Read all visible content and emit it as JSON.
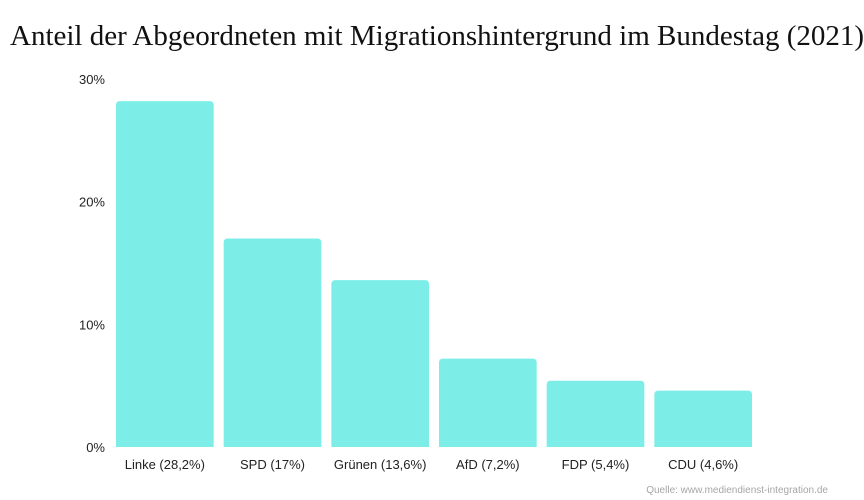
{
  "chart_data": {
    "type": "bar",
    "title": "Anteil der Abgeordneten mit Migrationshintergrund im Bundestag (2021)",
    "categories": [
      "Linke (28,2%)",
      "SPD (17%)",
      "Grünen (13,6%)",
      "AfD (7,2%)",
      "FDP (5,4%)",
      "CDU (4,6%)"
    ],
    "values": [
      28.2,
      17,
      13.6,
      7.2,
      5.4,
      4.6
    ],
    "ylim": [
      0,
      30
    ],
    "yticks": [
      0,
      10,
      20,
      30
    ],
    "ytick_labels": [
      "0%",
      "10%",
      "20%",
      "30%"
    ],
    "xlabel": "",
    "ylabel": "",
    "grid": false,
    "legend": "none",
    "bar_color": "#7deee7",
    "source": "Quelle: www.mediendienst-integration.de"
  }
}
